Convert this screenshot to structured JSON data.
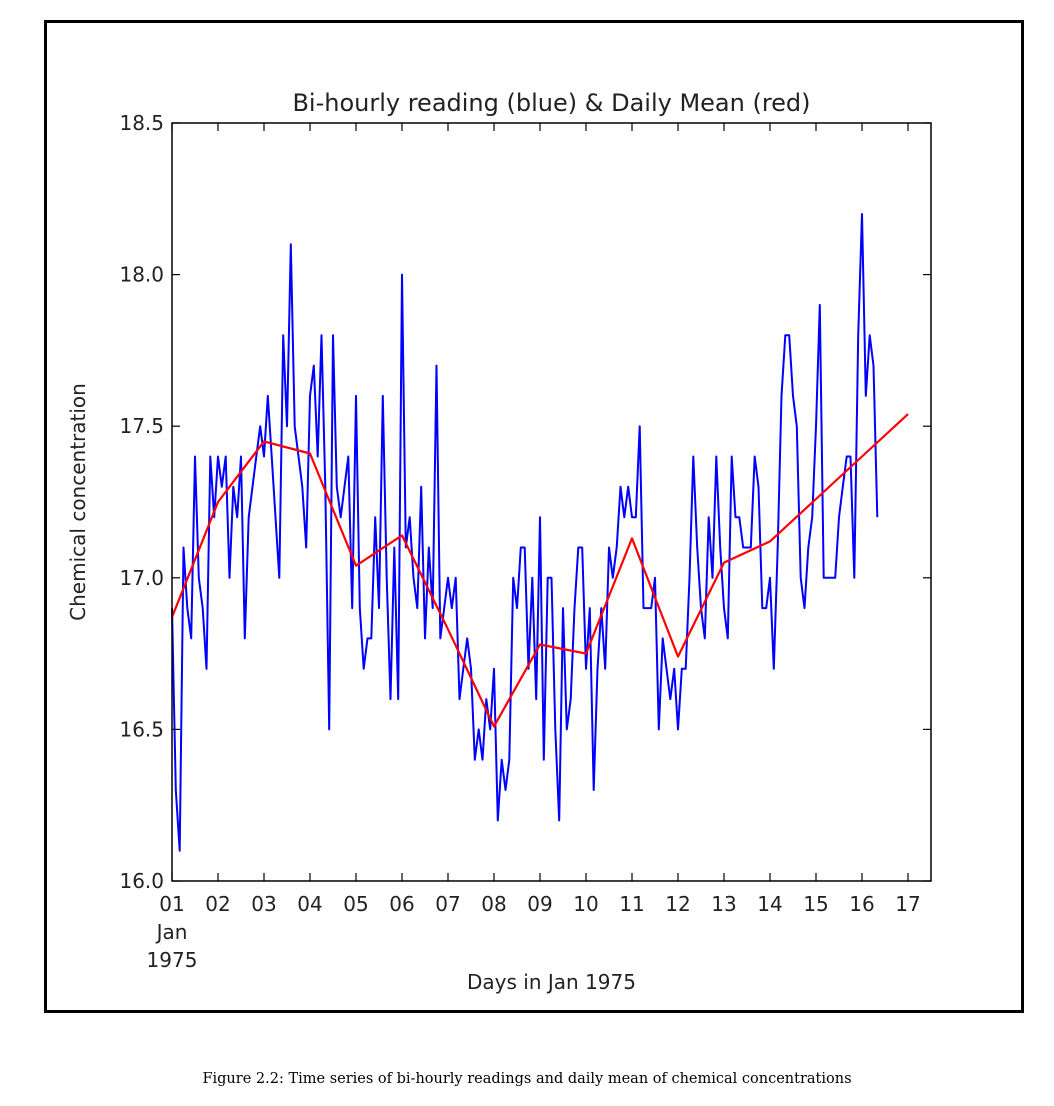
{
  "chart_data": {
    "type": "line",
    "title": "Bi-hourly reading (blue) & Daily Mean (red)",
    "xlabel": "Days in Jan 1975",
    "ylabel": "Chemical concentration",
    "ylim": [
      16.0,
      18.5
    ],
    "yticks": [
      16.0,
      16.5,
      17.0,
      17.5,
      18.0,
      18.5
    ],
    "ytick_labels": [
      "16.0",
      "16.5",
      "17.0",
      "17.5",
      "18.0",
      "18.5"
    ],
    "xlim": [
      "1975-01-01 00:00",
      "1975-01-17 12:00"
    ],
    "xtick_dates": [
      "1975-01-01",
      "1975-01-02",
      "1975-01-03",
      "1975-01-04",
      "1975-01-05",
      "1975-01-06",
      "1975-01-07",
      "1975-01-08",
      "1975-01-09",
      "1975-01-10",
      "1975-01-11",
      "1975-01-12",
      "1975-01-13",
      "1975-01-14",
      "1975-01-15",
      "1975-01-16",
      "1975-01-17"
    ],
    "xtick_labels": [
      "01",
      "02",
      "03",
      "04",
      "05",
      "06",
      "07",
      "08",
      "09",
      "10",
      "11",
      "12",
      "13",
      "14",
      "15",
      "16",
      "17"
    ],
    "xtick_sublabels": [
      "Jan",
      "1975"
    ],
    "grid": false,
    "series": [
      {
        "name": "Bi-hourly reading",
        "color": "#0000ff",
        "interval_hours": 2,
        "start": "1975-01-01 00:00",
        "values": [
          16.9,
          16.3,
          16.1,
          17.1,
          16.9,
          16.8,
          17.4,
          17.0,
          16.9,
          16.7,
          17.4,
          17.2,
          17.4,
          17.3,
          17.4,
          17.0,
          17.3,
          17.2,
          17.4,
          16.8,
          17.2,
          17.3,
          17.4,
          17.5,
          17.4,
          17.6,
          17.4,
          17.2,
          17.0,
          17.8,
          17.5,
          18.1,
          17.5,
          17.4,
          17.3,
          17.1,
          17.6,
          17.7,
          17.4,
          17.8,
          17.3,
          16.5,
          17.8,
          17.3,
          17.2,
          17.3,
          17.4,
          16.9,
          17.6,
          16.9,
          16.7,
          16.8,
          16.8,
          17.2,
          16.9,
          17.6,
          17.0,
          16.6,
          17.1,
          16.6,
          18.0,
          17.1,
          17.2,
          17.0,
          16.9,
          17.3,
          16.8,
          17.1,
          16.9,
          17.7,
          16.8,
          16.9,
          17.0,
          16.9,
          17.0,
          16.6,
          16.7,
          16.8,
          16.7,
          16.4,
          16.5,
          16.4,
          16.6,
          16.5,
          16.7,
          16.2,
          16.4,
          16.3,
          16.4,
          17.0,
          16.9,
          17.1,
          17.1,
          16.7,
          17.0,
          16.6,
          17.2,
          16.4,
          17.0,
          17.0,
          16.5,
          16.2,
          16.9,
          16.5,
          16.6,
          16.9,
          17.1,
          17.1,
          16.7,
          16.9,
          16.3,
          16.7,
          16.9,
          16.7,
          17.1,
          17.0,
          17.1,
          17.3,
          17.2,
          17.3,
          17.2,
          17.2,
          17.5,
          16.9,
          16.9,
          16.9,
          17.0,
          16.5,
          16.8,
          16.7,
          16.6,
          16.7,
          16.5,
          16.7,
          16.7,
          17.0,
          17.4,
          17.1,
          16.9,
          16.8,
          17.2,
          17.0,
          17.4,
          17.1,
          16.9,
          16.8,
          17.4,
          17.2,
          17.2,
          17.1,
          17.1,
          17.1,
          17.4,
          17.3,
          16.9,
          16.9,
          17.0,
          16.7,
          17.1,
          17.6,
          17.8,
          17.8,
          17.6,
          17.5,
          17.0,
          16.9,
          17.1,
          17.2,
          17.5,
          17.9,
          17.0,
          17.0,
          17.0,
          17.0,
          17.2,
          17.3,
          17.4,
          17.4,
          17.0,
          17.8,
          18.2,
          17.6,
          17.8,
          17.7,
          17.2
        ]
      },
      {
        "name": "Daily Mean",
        "color": "#ff0000",
        "x": [
          "1975-01-01",
          "1975-01-02",
          "1975-01-03",
          "1975-01-04",
          "1975-01-05",
          "1975-01-06",
          "1975-01-07",
          "1975-01-08",
          "1975-01-09",
          "1975-01-10",
          "1975-01-11",
          "1975-01-12",
          "1975-01-13",
          "1975-01-14",
          "1975-01-15",
          "1975-01-16",
          "1975-01-17"
        ],
        "values": [
          16.87,
          17.25,
          17.45,
          17.41,
          17.04,
          17.14,
          16.83,
          16.51,
          16.78,
          16.75,
          17.13,
          16.74,
          17.05,
          17.12,
          17.26,
          17.4,
          17.54
        ]
      }
    ]
  },
  "caption": "Figure 2.2: Time series of bi-hourly readings and daily mean of chemical concentrations"
}
